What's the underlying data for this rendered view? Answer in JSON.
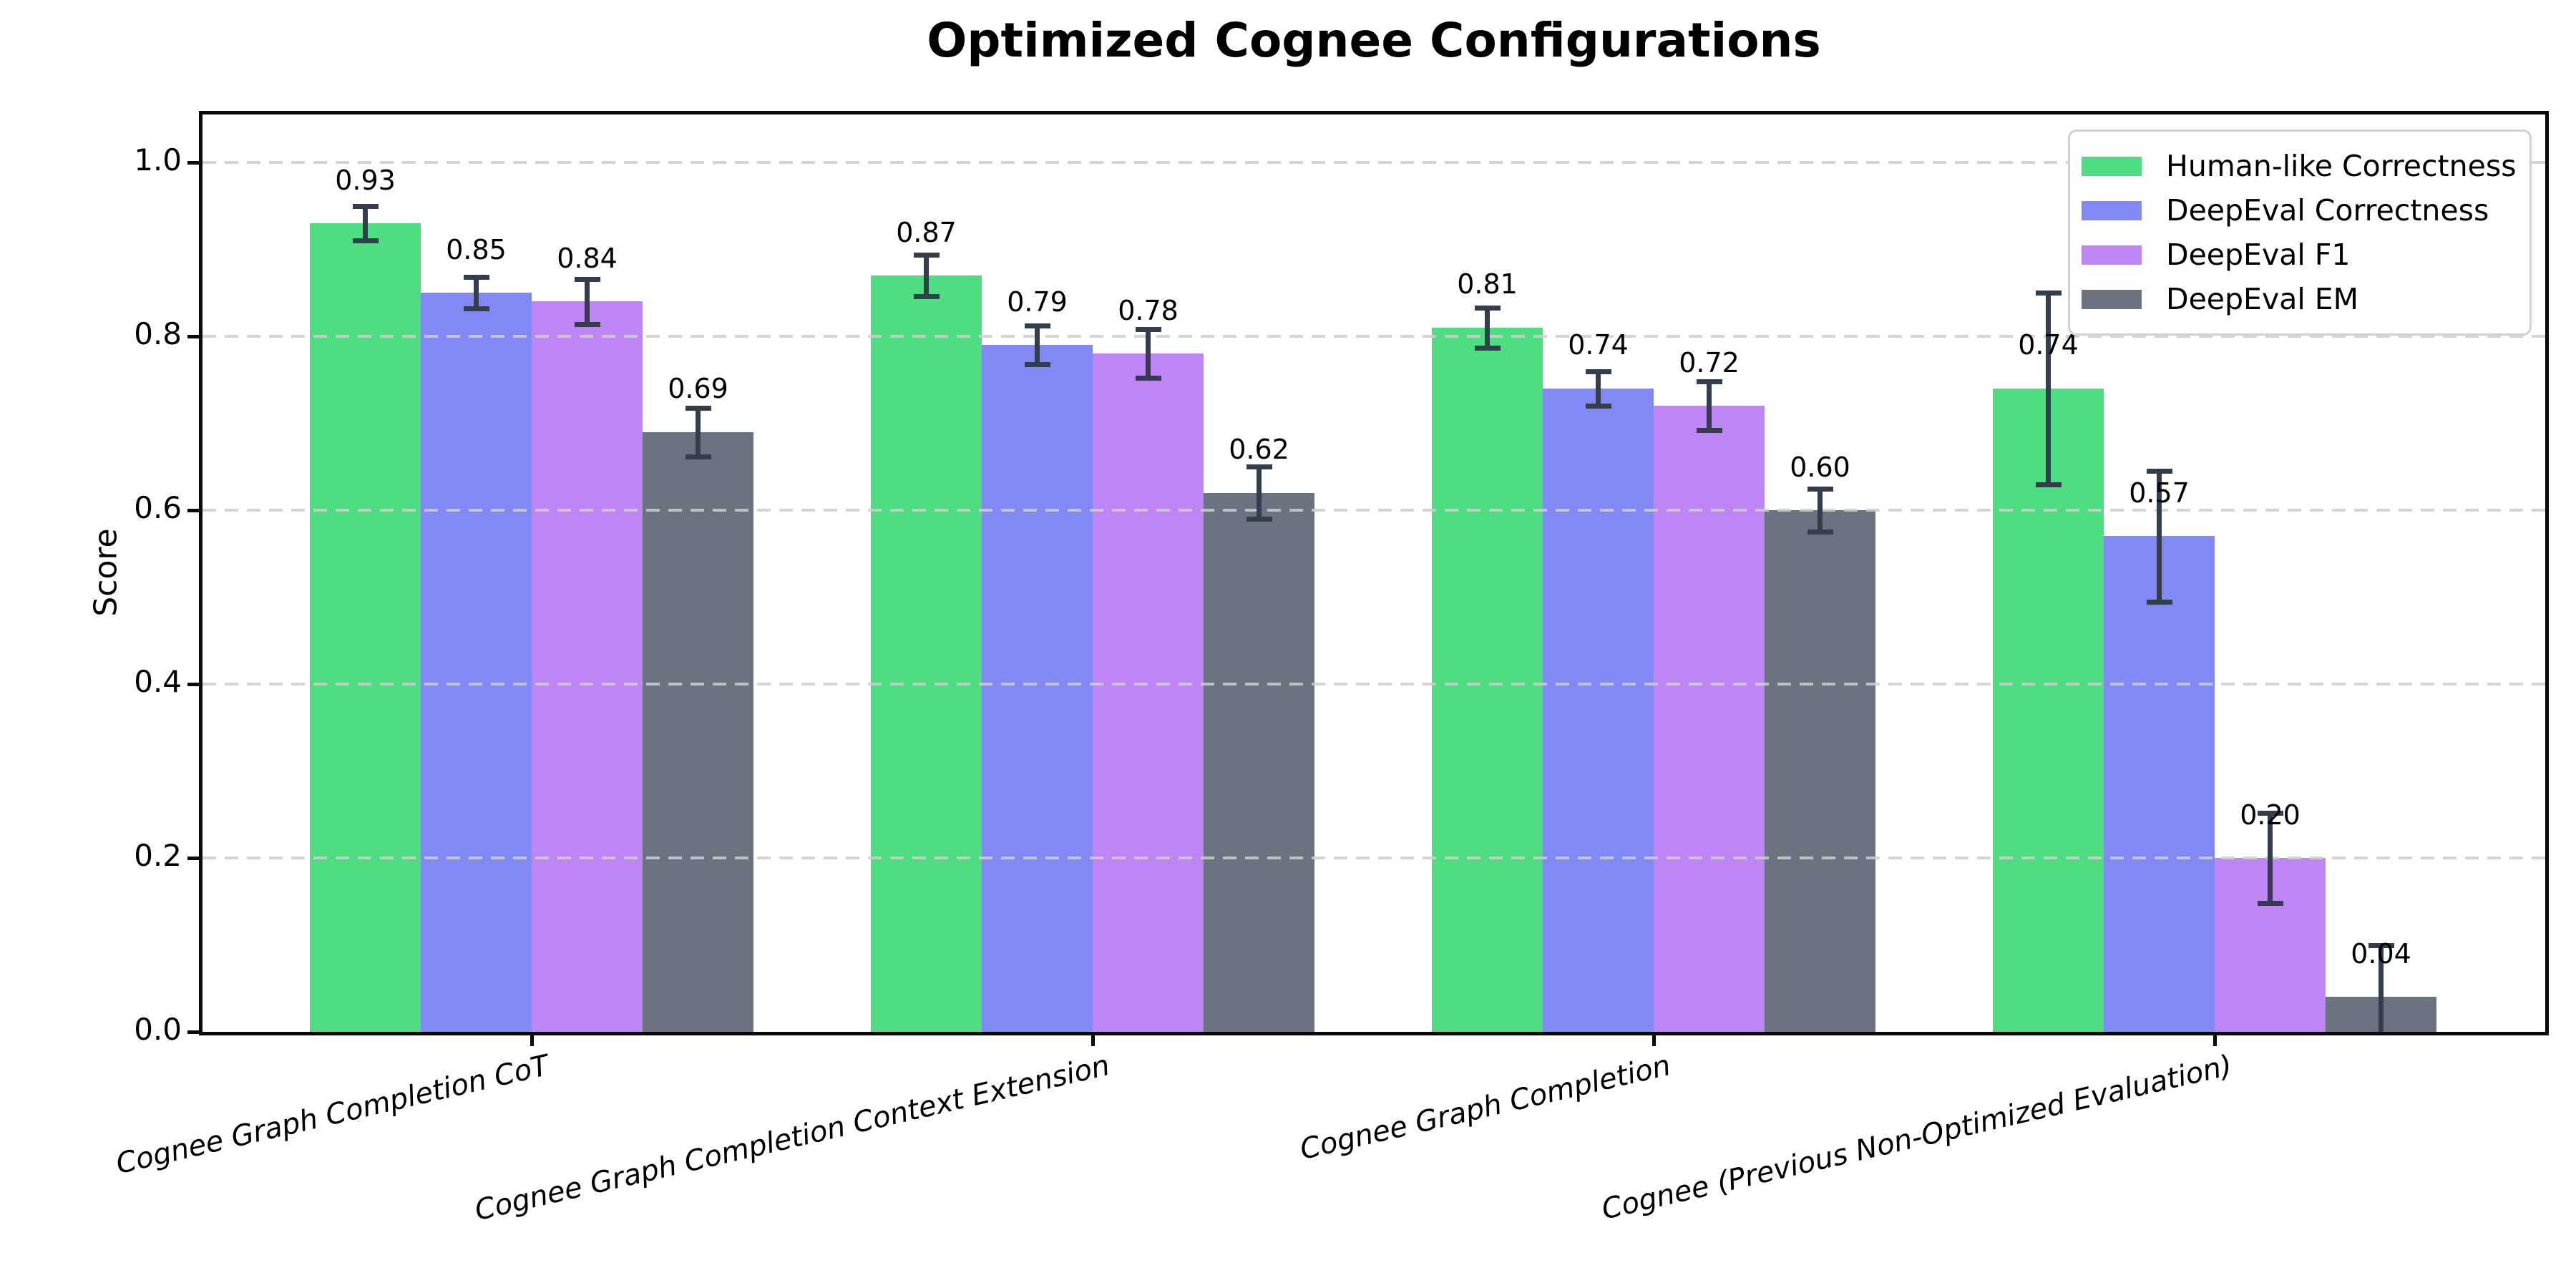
{
  "chart_data": {
    "type": "bar",
    "title": "Optimized Cognee Configurations",
    "xlabel": "",
    "ylabel": "Score",
    "ylim": [
      0,
      1.055
    ],
    "yticks": [
      0.0,
      0.2,
      0.4,
      0.6,
      0.8,
      1.0
    ],
    "grid": "horizontal dashed gridlines drawn over bars",
    "legend_position": "upper right",
    "bar_value_labels_shown": true,
    "error_bars_shown": true,
    "error_bar_color": "#333d4e",
    "gridline_color": "#cecece",
    "categories": [
      "Cognee Graph Completion CoT",
      "Cognee Graph Completion Context Extension",
      "Cognee Graph Completion",
      "Cognee (Previous Non-Optimized Evaluation)"
    ],
    "series": [
      {
        "name": "Human-like Correctness",
        "color": "#4edd81",
        "values": [
          0.93,
          0.87,
          0.81,
          0.74
        ],
        "errors": [
          0.02,
          0.024,
          0.023,
          0.11
        ]
      },
      {
        "name": "DeepEval Correctness",
        "color": "#8289f5",
        "values": [
          0.85,
          0.79,
          0.74,
          0.57
        ],
        "errors": [
          0.018,
          0.022,
          0.02,
          0.075
        ]
      },
      {
        "name": "DeepEval F1",
        "color": "#bf85f4",
        "values": [
          0.84,
          0.78,
          0.72,
          0.2
        ],
        "errors": [
          0.026,
          0.028,
          0.028,
          0.052
        ]
      },
      {
        "name": "DeepEval EM",
        "color": "#6b7280",
        "values": [
          0.69,
          0.62,
          0.6,
          0.04
        ],
        "errors": [
          0.028,
          0.03,
          0.025,
          0.06
        ]
      }
    ]
  }
}
